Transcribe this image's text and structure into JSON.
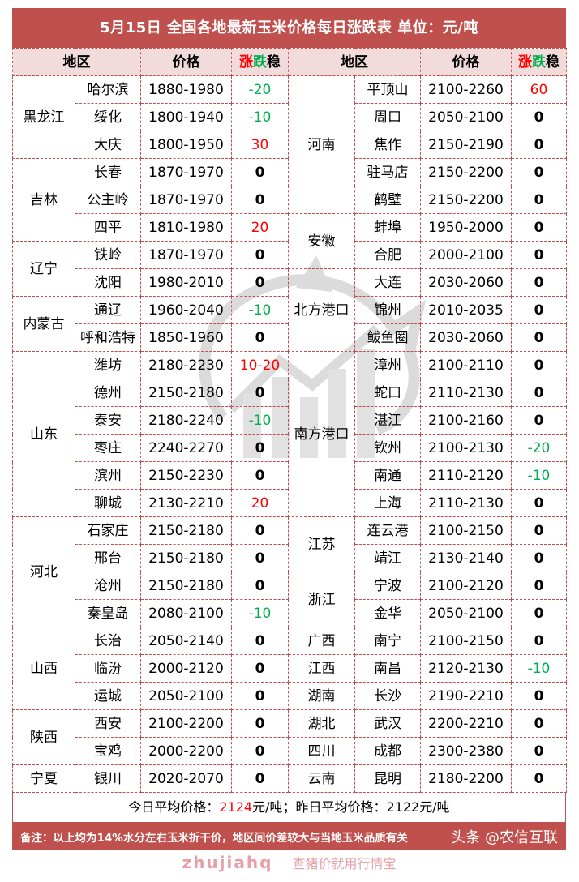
{
  "title": "5月15日  全国各地最新玉米价格每日涨跌表   单位：元/吨",
  "headers": {
    "region": "地区",
    "price": "价格",
    "change_up": "涨",
    "change_down": "跌",
    "change_flat": "稳"
  },
  "colors": {
    "up": "#ff0000",
    "down": "#00b050",
    "header_bg": "#c0504d",
    "subheader_bg": "#f2dcdb"
  },
  "left": [
    {
      "region": "黑龙江",
      "cities": [
        {
          "city": "哈尔滨",
          "price": "1880-1980",
          "change": "-20"
        },
        {
          "city": "绥化",
          "price": "1800-1940",
          "change": "-10"
        },
        {
          "city": "大庆",
          "price": "1800-1950",
          "change": "30"
        }
      ]
    },
    {
      "region": "吉林",
      "cities": [
        {
          "city": "长春",
          "price": "1870-1970",
          "change": "0"
        },
        {
          "city": "公主岭",
          "price": "1870-1970",
          "change": "0"
        },
        {
          "city": "四平",
          "price": "1810-1980",
          "change": "20"
        }
      ]
    },
    {
      "region": "辽宁",
      "cities": [
        {
          "city": "铁岭",
          "price": "1870-1970",
          "change": "0"
        },
        {
          "city": "沈阳",
          "price": "1980-2010",
          "change": "0"
        }
      ]
    },
    {
      "region": "内蒙古",
      "cities": [
        {
          "city": "通辽",
          "price": "1960-2040",
          "change": "-10"
        },
        {
          "city": "呼和浩特",
          "price": "1850-1960",
          "change": "0"
        }
      ]
    },
    {
      "region": "山东",
      "cities": [
        {
          "city": "潍坊",
          "price": "2180-2230",
          "change": "10-20"
        },
        {
          "city": "德州",
          "price": "2150-2180",
          "change": "0"
        },
        {
          "city": "泰安",
          "price": "2180-2240",
          "change": "-10"
        },
        {
          "city": "枣庄",
          "price": "2240-2270",
          "change": "0"
        },
        {
          "city": "滨州",
          "price": "2150-2230",
          "change": "0"
        },
        {
          "city": "聊城",
          "price": "2130-2210",
          "change": "20"
        }
      ]
    },
    {
      "region": "河北",
      "cities": [
        {
          "city": "石家庄",
          "price": "2150-2180",
          "change": "0"
        },
        {
          "city": "邢台",
          "price": "2150-2180",
          "change": "0"
        },
        {
          "city": "沧州",
          "price": "2150-2180",
          "change": "0"
        },
        {
          "city": "秦皇岛",
          "price": "2080-2100",
          "change": "-10"
        }
      ]
    },
    {
      "region": "山西",
      "cities": [
        {
          "city": "长治",
          "price": "2050-2140",
          "change": "0"
        },
        {
          "city": "临汾",
          "price": "2000-2120",
          "change": "0"
        },
        {
          "city": "运城",
          "price": "2050-2100",
          "change": "0"
        }
      ]
    },
    {
      "region": "陕西",
      "cities": [
        {
          "city": "西安",
          "price": "2100-2200",
          "change": "0"
        },
        {
          "city": "宝鸡",
          "price": "2000-2200",
          "change": "0"
        }
      ]
    },
    {
      "region": "宁夏",
      "cities": [
        {
          "city": "银川",
          "price": "2020-2070",
          "change": "0"
        }
      ]
    }
  ],
  "right": [
    {
      "region": "河南",
      "cities": [
        {
          "city": "平顶山",
          "price": "2100-2260",
          "change": "60"
        },
        {
          "city": "周口",
          "price": "2050-2100",
          "change": "0"
        },
        {
          "city": "焦作",
          "price": "2150-2190",
          "change": "0"
        },
        {
          "city": "驻马店",
          "price": "2150-2200",
          "change": "0"
        },
        {
          "city": "鹤壁",
          "price": "2150-2200",
          "change": "0"
        }
      ]
    },
    {
      "region": "安徽",
      "cities": [
        {
          "city": "蚌埠",
          "price": "1950-2000",
          "change": "0"
        },
        {
          "city": "合肥",
          "price": "2000-2100",
          "change": "0"
        }
      ]
    },
    {
      "region": "北方港口",
      "cities": [
        {
          "city": "大连",
          "price": "2030-2060",
          "change": "0"
        },
        {
          "city": "锦州",
          "price": "2010-2035",
          "change": "0"
        },
        {
          "city": "鲅鱼圈",
          "price": "2030-2060",
          "change": "0"
        }
      ]
    },
    {
      "region": "南方港口",
      "cities": [
        {
          "city": "漳州",
          "price": "2100-2110",
          "change": "0"
        },
        {
          "city": "蛇口",
          "price": "2110-2130",
          "change": "0"
        },
        {
          "city": "湛江",
          "price": "2100-2160",
          "change": "0"
        },
        {
          "city": "钦州",
          "price": "2100-2130",
          "change": "-20"
        },
        {
          "city": "南通",
          "price": "2110-2120",
          "change": "-10"
        },
        {
          "city": "上海",
          "price": "2110-2130",
          "change": "0"
        }
      ]
    },
    {
      "region": "江苏",
      "cities": [
        {
          "city": "连云港",
          "price": "2100-2150",
          "change": "0"
        },
        {
          "city": "靖江",
          "price": "2130-2140",
          "change": "0"
        }
      ]
    },
    {
      "region": "浙江",
      "cities": [
        {
          "city": "宁波",
          "price": "2100-2120",
          "change": "0"
        },
        {
          "city": "金华",
          "price": "2050-2100",
          "change": "0"
        }
      ]
    },
    {
      "region": "广西",
      "cities": [
        {
          "city": "南宁",
          "price": "2100-2150",
          "change": "0"
        }
      ]
    },
    {
      "region": "江西",
      "cities": [
        {
          "city": "南昌",
          "price": "2120-2130",
          "change": "-10"
        }
      ]
    },
    {
      "region": "湖南",
      "cities": [
        {
          "city": "长沙",
          "price": "2190-2210",
          "change": "0"
        }
      ]
    },
    {
      "region": "湖北",
      "cities": [
        {
          "city": "武汉",
          "price": "2200-2210",
          "change": "0"
        }
      ]
    },
    {
      "region": "四川",
      "cities": [
        {
          "city": "成都",
          "price": "2300-2380",
          "change": "0"
        }
      ]
    },
    {
      "region": "云南",
      "cities": [
        {
          "city": "昆明",
          "price": "2180-2200",
          "change": "0"
        }
      ]
    }
  ],
  "average": {
    "today_label": "今日平均价格：",
    "today_value": "2124",
    "unit": "元/吨；",
    "yesterday_label": "昨日平均价格：",
    "yesterday_value": "2122",
    "yesterday_unit": "元/吨"
  },
  "note": "备注：以上均为14%水分左右玉米折干价，地区间价差较大与当地玉米品质有关",
  "watermark": {
    "brand": "zhujiahq",
    "slogan": "查猪价就用行情宝",
    "logo_icon": "pig-chart-logo"
  },
  "credit": "头条 @农信互联"
}
